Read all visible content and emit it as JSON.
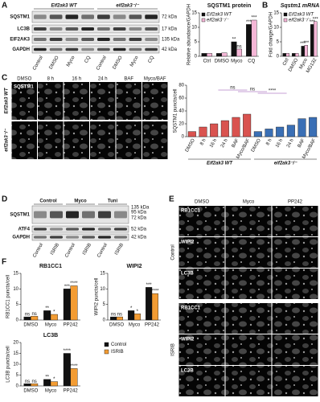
{
  "panel_a": {
    "letter": "A",
    "blot": {
      "groups": [
        "Eif2ak3 WT",
        "eif2ak3⁻/⁻"
      ],
      "rows": [
        "SQSTM1",
        "LC3B",
        "EIF2AK3",
        "GAPDH"
      ],
      "markers": [
        "72 kDa",
        "17 kDa",
        "135 kDa",
        "42 kDa"
      ],
      "lanes": [
        "Control",
        "DMSO",
        "Myco",
        "CQ",
        "Control",
        "DMSO",
        "Myco",
        "CQ"
      ]
    },
    "chart": {
      "type": "bar",
      "title": "SQSTM1 protein",
      "y_label": "Relative abundance/GAPDH",
      "categories": [
        "Ctrl",
        "DMSO",
        "Myco",
        "CQ"
      ],
      "series": [
        {
          "name": "Eif2ak3 WT",
          "color": "#111111",
          "values": [
            1,
            1,
            5,
            11
          ]
        },
        {
          "name": "eif2ak3⁻/⁻",
          "color": "#f4b6d6",
          "values": [
            1,
            1.2,
            2.5,
            12.5
          ]
        }
      ],
      "ylim": [
        0,
        15
      ],
      "yticks": [
        0,
        5,
        10,
        15
      ],
      "annotations": [
        "**",
        "ns",
        "***",
        "***"
      ]
    }
  },
  "panel_b": {
    "letter": "B",
    "chart": {
      "type": "bar",
      "title": "Sqstm1 mRNA",
      "y_label": "Fold change/GAPDH",
      "categories": [
        "Ctrl",
        "DMSO",
        "Myco",
        "MG132"
      ],
      "series": [
        {
          "name": "Eif2ak3 WT",
          "color": "#111111",
          "values": [
            1,
            1,
            3.5,
            11
          ]
        },
        {
          "name": "eif2ak3⁻/⁻",
          "color": "#f4b6d6",
          "values": [
            1,
            1,
            3.8,
            12
          ]
        }
      ],
      "ylim": [
        0,
        15
      ],
      "yticks": [
        0,
        5,
        10,
        15
      ],
      "annotations": [
        "***",
        "***",
        "***",
        "***"
      ]
    }
  },
  "panel_c": {
    "letter": "C",
    "images": {
      "columns": [
        "DMSO",
        "8 h",
        "16 h",
        "24 h",
        "BAF",
        "Myco/BAF"
      ],
      "rows": [
        "Eif2ak3 WT",
        "eif2ak3⁻/⁻"
      ],
      "stain": "SQSTM1"
    },
    "chart": {
      "type": "bar",
      "y_label": "SQSTM1 puncta/cell",
      "categories": [
        "DMSO",
        "8 h",
        "16 h",
        "24 h",
        "BAF",
        "Myco/BAF"
      ],
      "series": [
        {
          "name": "Eif2ak3 WT",
          "color": "#d9534f",
          "values": [
            8,
            15,
            20,
            25,
            30,
            35
          ]
        },
        {
          "name": "eif2ak3⁻/⁻",
          "color": "#3a6fb5",
          "values": [
            8,
            12,
            15,
            18,
            28,
            30
          ]
        }
      ],
      "ylim": [
        0,
        80
      ],
      "yticks": [
        0,
        20,
        40,
        60,
        80
      ],
      "annotations": [
        "ns",
        "ns",
        "****"
      ]
    }
  },
  "panel_d": {
    "letter": "D",
    "blot": {
      "groups": [
        "Control",
        "Myco",
        "Tuni"
      ],
      "rows": [
        "SQSTM1",
        "ATF4",
        "GAPDH"
      ],
      "markers": [
        "135 kDa",
        "95 kDa",
        "72 kDa",
        "52 kDa",
        "42 kDa"
      ],
      "lanes": [
        "Control",
        "ISRIB",
        "Control",
        "ISRIB",
        "Control",
        "ISRIB"
      ]
    }
  },
  "panel_e": {
    "letter": "E",
    "columns": [
      "DMSO",
      "Myco",
      "PP242"
    ],
    "groups": [
      {
        "name": "Control",
        "rows": [
          "RB1CC1",
          "WIPI2",
          "LC3B"
        ]
      },
      {
        "name": "ISRIB",
        "rows": [
          "RB1CC1",
          "WIPI2",
          "LC3B"
        ]
      }
    ]
  },
  "panel_f": {
    "letter": "F",
    "legend": [
      {
        "name": "Control",
        "color": "#111111"
      },
      {
        "name": "ISRIB",
        "color": "#f39c33"
      }
    ],
    "charts": [
      {
        "type": "bar",
        "title": "RB1CC1",
        "y_label": "RB1CC1 puncta/cell",
        "categories": [
          "DMSO",
          "Myco",
          "PP242"
        ],
        "series": [
          {
            "color": "#111111",
            "values": [
              1,
              3,
              10
            ]
          },
          {
            "color": "#f39c33",
            "values": [
              1.2,
              1.8,
              11
            ]
          }
        ],
        "ylim": [
          0,
          15
        ],
        "yticks": [
          0,
          5,
          10,
          15
        ],
        "annotations": [
          "ns",
          "ns",
          "**",
          "*",
          "***",
          "****"
        ]
      },
      {
        "type": "bar",
        "title": "WIPI2",
        "y_label": "WIPI2 puncta/cell",
        "categories": [
          "DMSO",
          "Myco",
          "PP242"
        ],
        "series": [
          {
            "color": "#111111",
            "values": [
              1,
              3,
              10.5
            ]
          },
          {
            "color": "#f39c33",
            "values": [
              1,
              2,
              8.5
            ]
          }
        ],
        "ylim": [
          0,
          15
        ],
        "yticks": [
          0,
          5,
          10,
          15
        ],
        "annotations": [
          "ns",
          "ns",
          "*",
          "*",
          "***",
          "****"
        ]
      },
      {
        "type": "bar",
        "title": "LC3B",
        "y_label": "LC3B puncta/cell",
        "categories": [
          "DMSO",
          "Myco",
          "PP242"
        ],
        "series": [
          {
            "color": "#111111",
            "values": [
              1,
              3,
              15
            ]
          },
          {
            "color": "#f39c33",
            "values": [
              1,
              2,
              8
            ]
          }
        ],
        "ylim": [
          0,
          20
        ],
        "yticks": [
          0,
          5,
          10,
          15,
          20
        ],
        "annotations": [
          "ns",
          "ns",
          "**",
          "*",
          "****",
          "****"
        ]
      }
    ]
  }
}
